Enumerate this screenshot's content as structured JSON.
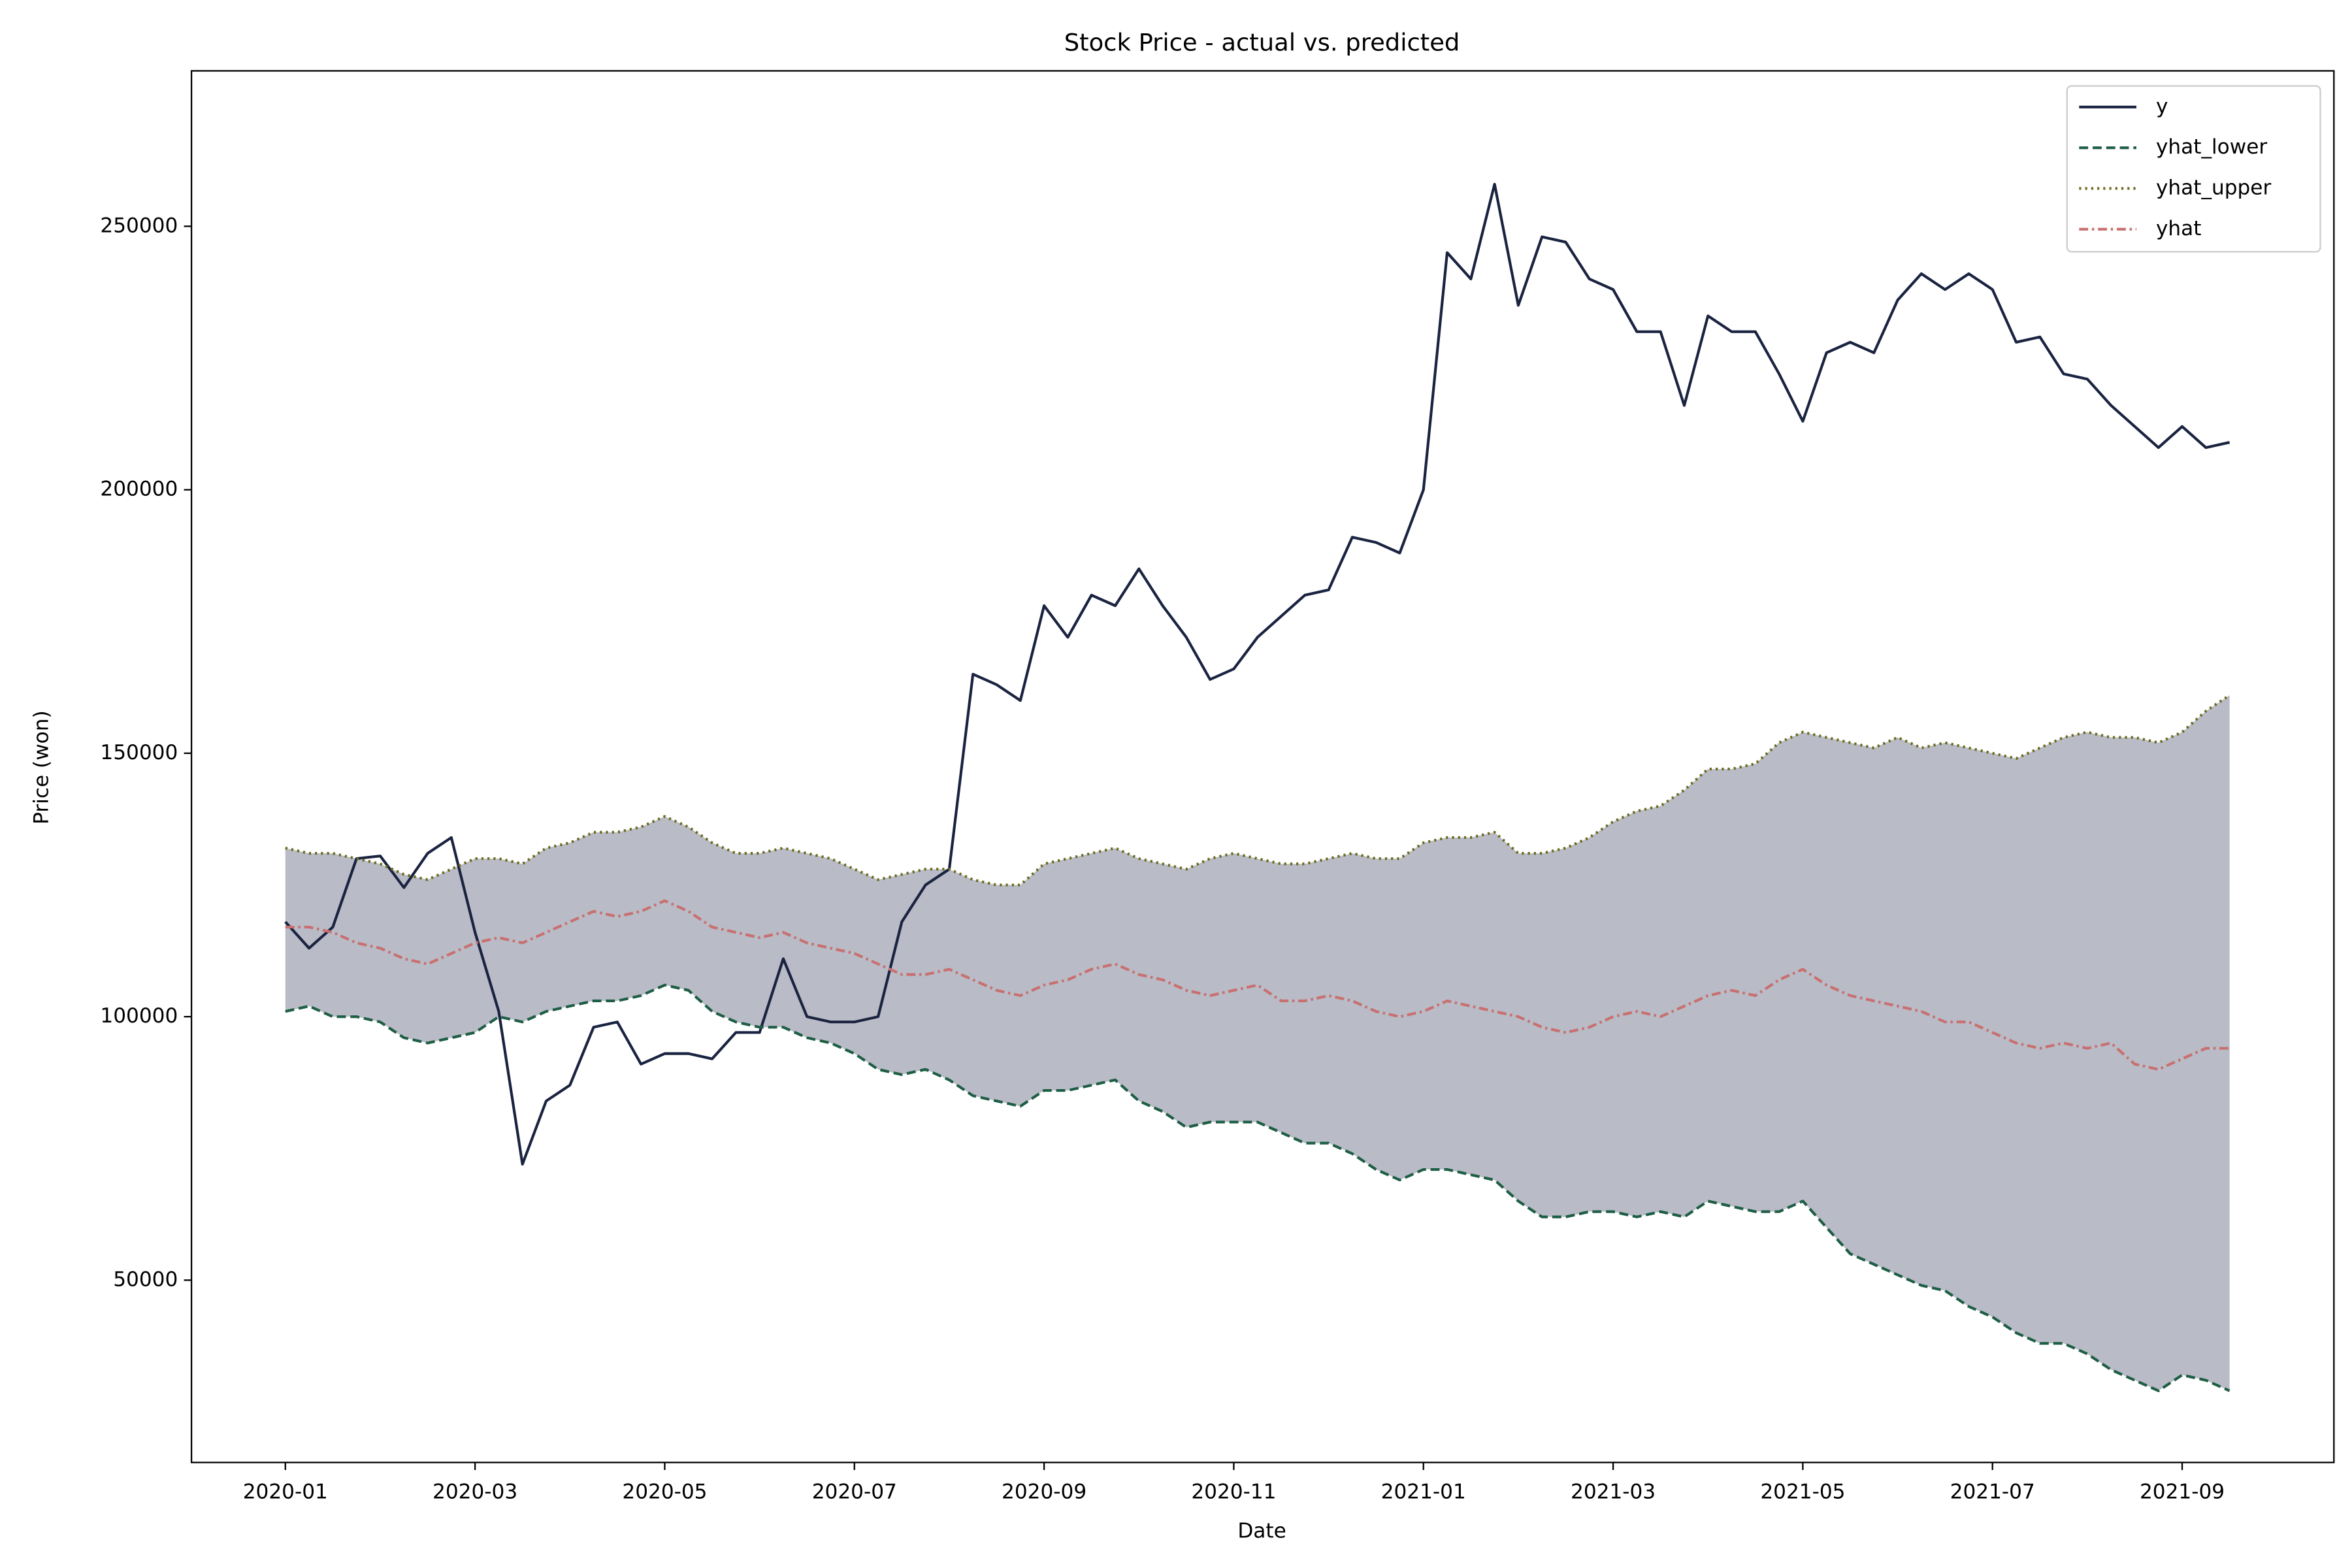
{
  "chart_data": {
    "type": "line",
    "title": "Stock Price - actual vs. predicted",
    "x_label": "Date",
    "y_label": "Price (won)",
    "legend": "upper right",
    "band": {
      "color": "#b9bbc6"
    },
    "xlim": [
      -0.99,
      21.6
    ],
    "xticks": [
      {
        "value": 0,
        "label": "2020-01"
      },
      {
        "value": 2,
        "label": "2020-03"
      },
      {
        "value": 4,
        "label": "2020-05"
      },
      {
        "value": 6,
        "label": "2020-07"
      },
      {
        "value": 8,
        "label": "2020-09"
      },
      {
        "value": 10,
        "label": "2020-11"
      },
      {
        "value": 12,
        "label": "2021-01"
      },
      {
        "value": 14,
        "label": "2021-03"
      },
      {
        "value": 16,
        "label": "2021-05"
      },
      {
        "value": 18,
        "label": "2021-07"
      },
      {
        "value": 20,
        "label": "2021-09"
      }
    ],
    "ylim": [
      15400,
      279500
    ],
    "yticks": [
      50000,
      100000,
      150000,
      200000,
      250000
    ],
    "x": [
      0,
      0.25,
      0.5,
      0.75,
      1,
      1.25,
      1.5,
      1.75,
      2,
      2.25,
      2.5,
      2.75,
      3,
      3.25,
      3.5,
      3.75,
      4,
      4.25,
      4.5,
      4.75,
      5,
      5.25,
      5.5,
      5.75,
      6,
      6.25,
      6.5,
      6.75,
      7,
      7.25,
      7.5,
      7.75,
      8,
      8.25,
      8.5,
      8.75,
      9,
      9.25,
      9.5,
      9.75,
      10,
      10.25,
      10.5,
      10.75,
      11,
      11.25,
      11.5,
      11.75,
      12,
      12.25,
      12.5,
      12.75,
      13,
      13.25,
      13.5,
      13.75,
      14,
      14.25,
      14.5,
      14.75,
      15,
      15.25,
      15.5,
      15.75,
      16,
      16.25,
      16.5,
      16.75,
      17,
      17.25,
      17.5,
      17.75,
      18,
      18.25,
      18.5,
      18.75,
      19,
      19.25,
      19.5,
      19.75,
      20,
      20.25,
      20.5
    ],
    "series": [
      {
        "name": "y",
        "color": "#1a2340",
        "dash": "solid",
        "values": [
          118000,
          113000,
          117000,
          130000,
          130500,
          124500,
          131000,
          134000,
          116000,
          101000,
          72000,
          84000,
          87000,
          98000,
          99000,
          91000,
          93000,
          93000,
          92000,
          97000,
          97000,
          111000,
          100000,
          99000,
          99000,
          100000,
          118000,
          125000,
          128000,
          165000,
          163000,
          160000,
          178000,
          172000,
          180000,
          178000,
          185000,
          178000,
          172000,
          164000,
          166000,
          172000,
          176000,
          180000,
          181000,
          191000,
          190000,
          188000,
          200000,
          245000,
          240000,
          258000,
          235000,
          248000,
          247000,
          240000,
          238000,
          230000,
          230000,
          216000,
          233000,
          230000,
          230000,
          222000,
          213000,
          226000,
          228000,
          226000,
          236000,
          241000,
          238000,
          241000,
          238000,
          228000,
          229000,
          222000,
          221000,
          216000,
          212000,
          208000,
          212000,
          208000,
          209000
        ]
      },
      {
        "name": "yhat_lower",
        "color": "#1e5e45",
        "dash": "dashed",
        "values": [
          101000,
          102000,
          100000,
          100000,
          99000,
          96000,
          95000,
          96000,
          97000,
          100000,
          99000,
          101000,
          102000,
          103000,
          103000,
          104000,
          106000,
          105000,
          101000,
          99000,
          98000,
          98000,
          96000,
          95000,
          93000,
          90000,
          89000,
          90000,
          88000,
          85000,
          84000,
          83000,
          86000,
          86000,
          87000,
          88000,
          84000,
          82000,
          79000,
          80000,
          80000,
          80000,
          78000,
          76000,
          76000,
          74000,
          71000,
          69000,
          71000,
          71000,
          70000,
          69000,
          65000,
          62000,
          62000,
          63000,
          63000,
          62000,
          63000,
          62000,
          65000,
          64000,
          63000,
          63000,
          65000,
          60000,
          55000,
          53000,
          51000,
          49000,
          48000,
          45000,
          43000,
          40000,
          38000,
          38000,
          36000,
          33000,
          31000,
          29000,
          32000,
          31000,
          29000
        ]
      },
      {
        "name": "yhat_upper",
        "color": "#6b6b1e",
        "dash": "dotted",
        "values": [
          132000,
          131000,
          131000,
          130000,
          129000,
          127000,
          126000,
          128000,
          130000,
          130000,
          129000,
          132000,
          133000,
          135000,
          135000,
          136000,
          138000,
          136000,
          133000,
          131000,
          131000,
          132000,
          131000,
          130000,
          128000,
          126000,
          127000,
          128000,
          128000,
          126000,
          125000,
          125000,
          129000,
          130000,
          131000,
          132000,
          130000,
          129000,
          128000,
          130000,
          131000,
          130000,
          129000,
          129000,
          130000,
          131000,
          130000,
          130000,
          133000,
          134000,
          134000,
          135000,
          131000,
          131000,
          132000,
          134000,
          137000,
          139000,
          140000,
          143000,
          147000,
          147000,
          148000,
          152000,
          154000,
          153000,
          152000,
          151000,
          153000,
          151000,
          152000,
          151000,
          150000,
          149000,
          151000,
          153000,
          154000,
          153000,
          153000,
          152000,
          154000,
          158000,
          161000
        ]
      },
      {
        "name": "yhat",
        "color": "#c87070",
        "dash": "dashdot",
        "values": [
          117000,
          117000,
          116000,
          114000,
          113000,
          111000,
          110000,
          112000,
          114000,
          115000,
          114000,
          116000,
          118000,
          120000,
          119000,
          120000,
          122000,
          120000,
          117000,
          116000,
          115000,
          116000,
          114000,
          113000,
          112000,
          110000,
          108000,
          108000,
          109000,
          107000,
          105000,
          104000,
          106000,
          107000,
          109000,
          110000,
          108000,
          107000,
          105000,
          104000,
          105000,
          106000,
          103000,
          103000,
          104000,
          103000,
          101000,
          100000,
          101000,
          103000,
          102000,
          101000,
          100000,
          98000,
          97000,
          98000,
          100000,
          101000,
          100000,
          102000,
          104000,
          105000,
          104000,
          107000,
          109000,
          106000,
          104000,
          103000,
          102000,
          101000,
          99000,
          99000,
          97000,
          95000,
          94000,
          95000,
          94000,
          95000,
          91000,
          90000,
          92000,
          94000,
          94000
        ]
      }
    ]
  }
}
